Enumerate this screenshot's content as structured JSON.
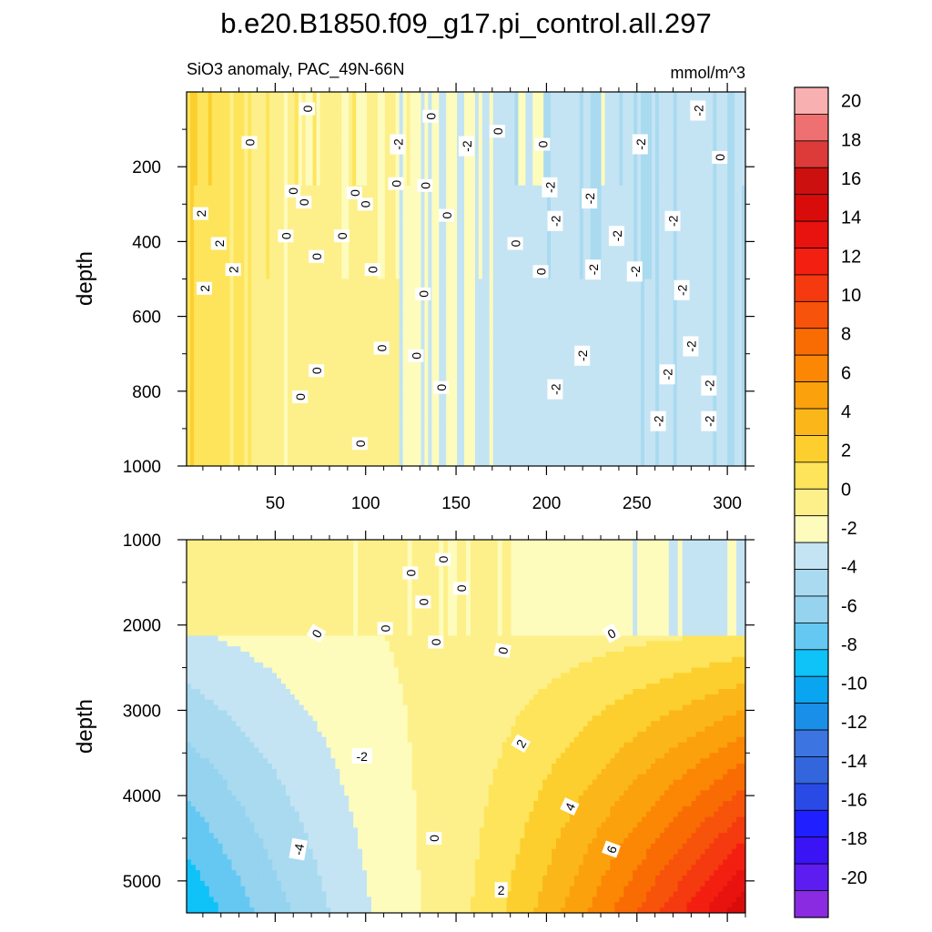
{
  "figure_title": "b.e20.B1850.f09_g17.pi_control.all.297",
  "subtitle_left": "SiO3 anomaly, PAC_49N-66N",
  "units": "mmol/m^3",
  "colors": {
    "levels": [
      -20,
      -18,
      -16,
      -14,
      -12,
      -10,
      -8,
      -6,
      -4,
      -2,
      0,
      2,
      4,
      6,
      8,
      10,
      12,
      14,
      16,
      18,
      20
    ],
    "palette": [
      "#8a2be2",
      "#5e1df0",
      "#3a14f5",
      "#1f1fff",
      "#2a4ae6",
      "#3366dd",
      "#3c74e2",
      "#1a8fe8",
      "#0aa5f0",
      "#0fc2f7",
      "#64c8f2",
      "#95d3ef",
      "#a9daf0",
      "#c4e4f4",
      "#fdfcbc",
      "#fdf08a",
      "#fde45a",
      "#fccf2e",
      "#fbb71a",
      "#fba10c",
      "#fb8704",
      "#f96c04",
      "#f7530a",
      "#f43a0e",
      "#f31f10",
      "#e8120f",
      "#d90c0c",
      "#cc1010",
      "#dd3a3a",
      "#ef7070",
      "#f8b0b0"
    ]
  },
  "chart_data": [
    {
      "type": "heatmap",
      "panel": "upper",
      "title": "SiO3 anomaly, PAC_49N-66N",
      "units": "mmol/m^3",
      "xlabel": "",
      "ylabel": "depth",
      "xlim": [
        1,
        310
      ],
      "ylim": [
        1000,
        0
      ],
      "xticks": [
        50,
        100,
        150,
        200,
        250,
        300
      ],
      "yticks": [
        200,
        400,
        600,
        800,
        1000
      ],
      "contour_labels": [
        {
          "x": 68,
          "y": 45,
          "t": "0",
          "r": -90
        },
        {
          "x": 136,
          "y": 65,
          "t": "0",
          "r": -90
        },
        {
          "x": 173,
          "y": 105,
          "t": "0",
          "r": -90
        },
        {
          "x": 36,
          "y": 135,
          "t": "0",
          "r": -90
        },
        {
          "x": 118,
          "y": 140,
          "t": "-2",
          "r": -90
        },
        {
          "x": 156,
          "y": 145,
          "t": "-2",
          "r": -90
        },
        {
          "x": 198,
          "y": 140,
          "t": "0",
          "r": -90
        },
        {
          "x": 252,
          "y": 140,
          "t": "-2",
          "r": -90
        },
        {
          "x": 296,
          "y": 175,
          "t": "0",
          "r": -90
        },
        {
          "x": 284,
          "y": 50,
          "t": "-2",
          "r": -90
        },
        {
          "x": 60,
          "y": 265,
          "t": "0",
          "r": -90
        },
        {
          "x": 94,
          "y": 270,
          "t": "0",
          "r": -90
        },
        {
          "x": 117,
          "y": 245,
          "t": "0",
          "r": -90
        },
        {
          "x": 133,
          "y": 250,
          "t": "0",
          "r": -90
        },
        {
          "x": 66,
          "y": 295,
          "t": "0",
          "r": -90
        },
        {
          "x": 100,
          "y": 300,
          "t": "0",
          "r": -90
        },
        {
          "x": 202,
          "y": 255,
          "t": "-2",
          "r": -90
        },
        {
          "x": 224,
          "y": 285,
          "t": "-2",
          "r": -90
        },
        {
          "x": 145,
          "y": 330,
          "t": "0",
          "r": -90
        },
        {
          "x": 9,
          "y": 325,
          "t": "2",
          "r": -90
        },
        {
          "x": 56,
          "y": 385,
          "t": "0",
          "r": -90
        },
        {
          "x": 87,
          "y": 385,
          "t": "0",
          "r": -90
        },
        {
          "x": 205,
          "y": 345,
          "t": "-2",
          "r": -90
        },
        {
          "x": 270,
          "y": 345,
          "t": "-2",
          "r": -90
        },
        {
          "x": 239,
          "y": 385,
          "t": "-2",
          "r": -90
        },
        {
          "x": 19,
          "y": 405,
          "t": "2",
          "r": -90
        },
        {
          "x": 183,
          "y": 405,
          "t": "0",
          "r": -90
        },
        {
          "x": 73,
          "y": 440,
          "t": "0",
          "r": -90
        },
        {
          "x": 27,
          "y": 475,
          "t": "2",
          "r": -90
        },
        {
          "x": 104,
          "y": 475,
          "t": "0",
          "r": -90
        },
        {
          "x": 197,
          "y": 480,
          "t": "0",
          "r": -90
        },
        {
          "x": 226,
          "y": 475,
          "t": "-2",
          "r": -90
        },
        {
          "x": 249,
          "y": 480,
          "t": "-2",
          "r": -90
        },
        {
          "x": 11,
          "y": 525,
          "t": "2",
          "r": -90
        },
        {
          "x": 132,
          "y": 540,
          "t": "0",
          "r": -90
        },
        {
          "x": 275,
          "y": 530,
          "t": "-2",
          "r": -90
        },
        {
          "x": 109,
          "y": 685,
          "t": "0",
          "r": -90
        },
        {
          "x": 280,
          "y": 680,
          "t": "-2",
          "r": -90
        },
        {
          "x": 128,
          "y": 705,
          "t": "0",
          "r": -90
        },
        {
          "x": 220,
          "y": 705,
          "t": "-2",
          "r": -90
        },
        {
          "x": 73,
          "y": 745,
          "t": "0",
          "r": -90
        },
        {
          "x": 267,
          "y": 755,
          "t": "-2",
          "r": -90
        },
        {
          "x": 142,
          "y": 790,
          "t": "0",
          "r": -90
        },
        {
          "x": 205,
          "y": 795,
          "t": "-2",
          "r": -90
        },
        {
          "x": 290,
          "y": 785,
          "t": "-2",
          "r": -90
        },
        {
          "x": 64,
          "y": 815,
          "t": "0",
          "r": -90
        },
        {
          "x": 262,
          "y": 880,
          "t": "-2",
          "r": -90
        },
        {
          "x": 290,
          "y": 880,
          "t": "-2",
          "r": -90
        },
        {
          "x": 97,
          "y": 940,
          "t": "0",
          "r": -90
        }
      ]
    },
    {
      "type": "heatmap",
      "panel": "lower",
      "title": "",
      "xlabel": "",
      "ylabel": "depth",
      "xlim": [
        1,
        310
      ],
      "ylim": [
        5375,
        1000
      ],
      "xticks": [
        50,
        100,
        150,
        200,
        250,
        300
      ],
      "yticks": [
        1000,
        2000,
        3000,
        4000,
        5000
      ],
      "contour_labels": [
        {
          "x": 143,
          "y": 1230,
          "t": "0",
          "r": -90
        },
        {
          "x": 125,
          "y": 1390,
          "t": "0",
          "r": -90
        },
        {
          "x": 153,
          "y": 1570,
          "t": "0",
          "r": -90
        },
        {
          "x": 132,
          "y": 1730,
          "t": "0",
          "r": -90
        },
        {
          "x": 111,
          "y": 2040,
          "t": "0",
          "r": -90
        },
        {
          "x": 73,
          "y": 2100,
          "t": "0",
          "r": -60
        },
        {
          "x": 139,
          "y": 2200,
          "t": "0",
          "r": -90
        },
        {
          "x": 176,
          "y": 2300,
          "t": "0",
          "r": -80
        },
        {
          "x": 236,
          "y": 2100,
          "t": "0",
          "r": -30
        },
        {
          "x": 98,
          "y": 3540,
          "t": "-2",
          "r": 0
        },
        {
          "x": 186,
          "y": 3390,
          "t": "2",
          "r": -60
        },
        {
          "x": 213,
          "y": 4130,
          "t": "4",
          "r": -65
        },
        {
          "x": 138,
          "y": 4500,
          "t": "0",
          "r": -90
        },
        {
          "x": 63,
          "y": 4630,
          "t": "-4",
          "r": -80
        },
        {
          "x": 236,
          "y": 4630,
          "t": "6",
          "r": -70
        },
        {
          "x": 175,
          "y": 5110,
          "t": "2",
          "r": 0
        }
      ]
    }
  ],
  "colorbar": {
    "labels": [
      "20",
      "18",
      "16",
      "14",
      "12",
      "10",
      "8",
      "6",
      "4",
      "2",
      "0",
      "-2",
      "-4",
      "-6",
      "-8",
      "-10",
      "-12",
      "-14",
      "-16",
      "-18",
      "-20"
    ]
  }
}
